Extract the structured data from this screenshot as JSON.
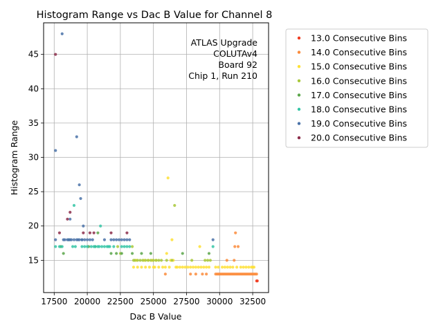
{
  "chart_data": {
    "type": "scatter",
    "title": "Histogram Range vs Dac B Value for Channel 8",
    "xlabel": "Dac B Value",
    "ylabel": "Histogram Range",
    "xlim": [
      16700,
      33700
    ],
    "ylim": [
      10.3,
      49.6
    ],
    "xticks": [
      17500,
      20000,
      22500,
      25000,
      27500,
      30000,
      32500
    ],
    "yticks": [
      15,
      20,
      25,
      30,
      35,
      40,
      45
    ],
    "grid": true,
    "legend_position": "outside-right",
    "annotation": [
      "ATLAS Upgrade",
      "COLUTAv4",
      "Board 92",
      "Chip 1, Run 210"
    ],
    "series": [
      {
        "name": "13.0 Consecutive Bins",
        "color": "#f03b20",
        "x": [
          32800,
          32850
        ],
        "y": [
          12,
          12
        ]
      },
      {
        "name": "14.0 Consecutive Bins",
        "color": "#fb8c3c",
        "x": [
          25900,
          27800,
          28200,
          28700,
          29000,
          29700,
          29800,
          29900,
          30000,
          30100,
          30200,
          30300,
          30400,
          30500,
          30550,
          30600,
          30700,
          30800,
          30900,
          31000,
          31100,
          31150,
          31200,
          31300,
          31400,
          31500,
          31600,
          31700,
          31800,
          31900,
          32000,
          32100,
          32200,
          32300,
          32400,
          32500,
          32600,
          32700,
          32800,
          31200,
          31400,
          31100
        ],
        "y": [
          13,
          13,
          13,
          13,
          13,
          13,
          13,
          13,
          13,
          13,
          13,
          13,
          13,
          13,
          15,
          13,
          13,
          13,
          13,
          13,
          13,
          17,
          19,
          13,
          17,
          13,
          13,
          13,
          13,
          13,
          13,
          13,
          13,
          13,
          13,
          13,
          13,
          13,
          13,
          13,
          13,
          15
        ]
      },
      {
        "name": "15.0 Consecutive Bins",
        "color": "#fee135",
        "x": [
          23500,
          23800,
          24100,
          24400,
          24700,
          25000,
          25100,
          25400,
          25700,
          25900,
          26000,
          26100,
          26200,
          26300,
          26400,
          26700,
          26800,
          27000,
          27200,
          27400,
          27600,
          27800,
          28000,
          28200,
          28400,
          28500,
          28600,
          28800,
          29000,
          29200,
          29700,
          29900,
          30200,
          30400,
          30600,
          30800,
          31000,
          31300,
          31600,
          31800,
          32000,
          32200,
          32400,
          32500,
          32600,
          24300,
          24600,
          24900,
          25200,
          23700,
          26500
        ],
        "y": [
          14,
          14,
          14,
          14,
          14,
          14,
          14,
          14,
          14,
          14,
          16,
          27,
          14,
          15,
          18,
          14,
          14,
          14,
          14,
          14,
          14,
          14,
          14,
          14,
          14,
          17,
          14,
          14,
          14,
          14,
          14,
          14,
          14,
          14,
          14,
          14,
          14,
          14,
          14,
          14,
          14,
          14,
          14,
          14,
          14,
          15,
          15,
          15,
          15,
          15,
          15
        ]
      },
      {
        "name": "16.0 Consecutive Bins",
        "color": "#a8c83a",
        "x": [
          23400,
          23600,
          23800,
          24000,
          24200,
          24400,
          24600,
          24800,
          25000,
          25200,
          25400,
          25600,
          26000,
          26400,
          26600,
          27900,
          28900,
          29100,
          29300,
          22500,
          23500,
          22300
        ],
        "y": [
          17,
          15,
          15,
          15,
          15,
          15,
          15,
          15,
          15,
          15,
          15,
          15,
          15,
          15,
          23,
          15,
          15,
          15,
          15,
          16,
          15,
          17
        ]
      },
      {
        "name": "17.0 Consecutive Bins",
        "color": "#5aa64a",
        "x": [
          18200,
          20100,
          20600,
          21800,
          22200,
          22600,
          23400,
          24100,
          24800,
          27200,
          29200,
          18000,
          20800
        ],
        "y": [
          16,
          17,
          17,
          16,
          16,
          16,
          16,
          16,
          16,
          16,
          16,
          17,
          19
        ]
      },
      {
        "name": "18.0 Consecutive Bins",
        "color": "#35c5a6",
        "x": [
          17600,
          17900,
          18100,
          18900,
          19100,
          19600,
          19800,
          20000,
          20300,
          20600,
          20800,
          20900,
          21100,
          21300,
          21500,
          21700,
          22000,
          22600,
          22800,
          23000,
          23200,
          29500,
          21000,
          19000,
          20500,
          21600,
          18600
        ],
        "y": [
          17,
          17,
          17,
          17,
          17,
          17,
          17,
          17,
          17,
          17,
          17,
          17,
          17,
          17,
          17,
          17,
          17,
          17,
          17,
          17,
          17,
          17,
          20,
          23,
          17,
          17,
          18
        ]
      },
      {
        "name": "19.0 Consecutive Bins",
        "color": "#4a72a8",
        "x": [
          17600,
          17600,
          18100,
          18200,
          18300,
          18500,
          18600,
          18700,
          18800,
          19000,
          19200,
          19300,
          19400,
          19500,
          19600,
          19800,
          20000,
          20200,
          20400,
          21300,
          21800,
          22000,
          22200,
          22400,
          22600,
          22800,
          23000,
          23200,
          29500,
          19200,
          19400,
          19700,
          18700,
          19600
        ],
        "y": [
          18,
          31,
          48,
          18,
          18,
          18,
          18,
          21,
          18,
          18,
          33,
          18,
          26,
          24,
          18,
          18,
          18,
          18,
          18,
          18,
          18,
          18,
          18,
          18,
          18,
          18,
          18,
          18,
          18,
          18,
          18,
          20,
          18,
          18
        ]
      },
      {
        "name": "20.0 Consecutive Bins",
        "color": "#8c2d4a",
        "x": [
          17600,
          17900,
          18500,
          18700,
          19700,
          20200,
          20500,
          21800,
          23000
        ],
        "y": [
          45,
          19,
          21,
          22,
          19,
          19,
          19,
          19,
          19
        ]
      }
    ]
  }
}
